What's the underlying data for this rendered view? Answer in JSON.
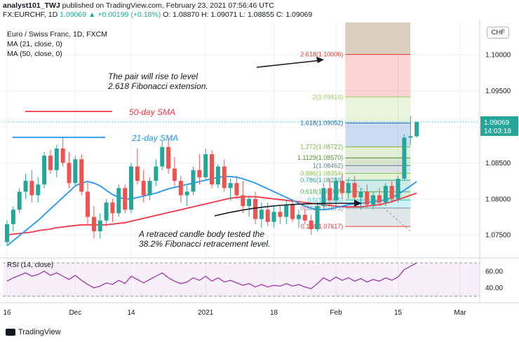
{
  "header": {
    "author": "analyst101_TWJ",
    "published_text": "published on TradingView.com, February 23, 2021 07:56:46 UTC",
    "symbol_line": "FX:EURCHF, 1D",
    "price": "1.09069",
    "change": "▲ +0.00199 (+0.18%)",
    "ohlc": "O: 1.08870 H: 1.09071 L: 1.08855 C: 1.09069"
  },
  "legend": {
    "title": "Euro / Swiss Franc, 1D, FXCM",
    "ma21": "MA (21, close, 0)",
    "ma50": "MA (50, close, 0)"
  },
  "currency_badge": "CHF",
  "annotations": {
    "rise": [
      "The pair will rise to level",
      "2.618 Fibonacci extension."
    ],
    "retrace": [
      "A retraced candle body tested the",
      "38.2% Fibonacci retracement level."
    ],
    "sma50_label": "50-day SMA",
    "sma21_label": "21-day SMA"
  },
  "footer": {
    "brand": "TradingView"
  },
  "colors": {
    "up": "#26a69a",
    "down": "#ef5350",
    "ma21": "#2196f3",
    "ma50": "#f23645",
    "rsi": "#9c27b0",
    "fib_top": "#d7cbb9"
  },
  "chart_data": {
    "type": "candlestick",
    "price_axis": {
      "min": 1.072,
      "max": 1.1045,
      "ticks": [
        "1.10000",
        "1.09500",
        "1.09000",
        "1.08500",
        "1.08000",
        "1.07500"
      ],
      "current_price": "1.09069",
      "countdown": "14:03:18"
    },
    "x_axis": {
      "ticks": [
        {
          "label": "16",
          "i": 0
        },
        {
          "label": "Dec",
          "i": 11
        },
        {
          "label": "14",
          "i": 20
        },
        {
          "label": "2021",
          "i": 32
        },
        {
          "label": "18",
          "i": 43
        },
        {
          "label": "Feb",
          "i": 53
        },
        {
          "label": "15",
          "i": 63
        },
        {
          "label": "Mar",
          "i": 73
        }
      ]
    },
    "candles": [
      [
        1.074,
        1.077,
        1.0735,
        1.0765
      ],
      [
        1.0765,
        1.079,
        1.0755,
        1.0785
      ],
      [
        1.0785,
        1.0815,
        1.078,
        1.081
      ],
      [
        1.081,
        1.0835,
        1.08,
        1.0825
      ],
      [
        1.0825,
        1.084,
        1.0795,
        1.0805
      ],
      [
        1.0805,
        1.083,
        1.0795,
        1.082
      ],
      [
        1.082,
        1.0865,
        1.0815,
        1.086
      ],
      [
        1.086,
        1.0868,
        1.0835,
        1.084
      ],
      [
        1.084,
        1.0875,
        1.083,
        1.087
      ],
      [
        1.087,
        1.0885,
        1.0845,
        1.085
      ],
      [
        1.085,
        1.0865,
        1.0815,
        1.0822
      ],
      [
        1.0822,
        1.086,
        1.0818,
        1.0855
      ],
      [
        1.0855,
        1.0862,
        1.0805,
        1.081
      ],
      [
        1.081,
        1.0822,
        1.0765,
        1.0775
      ],
      [
        1.0775,
        1.079,
        1.0745,
        1.0755
      ],
      [
        1.0755,
        1.078,
        1.0745,
        1.077
      ],
      [
        1.077,
        1.08,
        1.0762,
        1.0795
      ],
      [
        1.0795,
        1.08,
        1.0768,
        1.078
      ],
      [
        1.078,
        1.082,
        1.0775,
        1.0815
      ],
      [
        1.0815,
        1.082,
        1.078,
        1.0785
      ],
      [
        1.0785,
        1.085,
        1.078,
        1.0845
      ],
      [
        1.0845,
        1.087,
        1.082,
        1.0825
      ],
      [
        1.0825,
        1.084,
        1.0795,
        1.0805
      ],
      [
        1.0805,
        1.083,
        1.0798,
        1.0825
      ],
      [
        1.0825,
        1.0855,
        1.0818,
        1.0845
      ],
      [
        1.0845,
        1.088,
        1.084,
        1.0872
      ],
      [
        1.0872,
        1.0885,
        1.0835,
        1.0842
      ],
      [
        1.0842,
        1.0858,
        1.0818,
        1.0825
      ],
      [
        1.0825,
        1.0832,
        1.0795,
        1.0805
      ],
      [
        1.0805,
        1.0818,
        1.079,
        1.081
      ],
      [
        1.081,
        1.0845,
        1.0805,
        1.084
      ],
      [
        1.084,
        1.0862,
        1.082,
        1.083
      ],
      [
        1.083,
        1.087,
        1.0825,
        1.0862
      ],
      [
        1.0862,
        1.0868,
        1.0815,
        1.082
      ],
      [
        1.082,
        1.0848,
        1.0815,
        1.0845
      ],
      [
        1.0845,
        1.0855,
        1.081,
        1.0815
      ],
      [
        1.0815,
        1.0828,
        1.0798,
        1.0822
      ],
      [
        1.0822,
        1.0832,
        1.08,
        1.0805
      ],
      [
        1.0805,
        1.0825,
        1.078,
        1.079
      ],
      [
        1.079,
        1.0805,
        1.0775,
        1.08
      ],
      [
        1.08,
        1.081,
        1.0765,
        1.0772
      ],
      [
        1.0772,
        1.0795,
        1.076,
        1.0785
      ],
      [
        1.0785,
        1.0795,
        1.0762,
        1.0768
      ],
      [
        1.0768,
        1.079,
        1.076,
        1.0782
      ],
      [
        1.0782,
        1.079,
        1.0765,
        1.0775
      ],
      [
        1.0775,
        1.0798,
        1.0765,
        1.0792
      ],
      [
        1.0792,
        1.08,
        1.0768,
        1.0772
      ],
      [
        1.0772,
        1.0785,
        1.076,
        1.0778
      ],
      [
        1.0778,
        1.079,
        1.0765,
        1.077
      ],
      [
        1.077,
        1.0778,
        1.075,
        1.0758
      ],
      [
        1.0758,
        1.0795,
        1.0755,
        1.079
      ],
      [
        1.079,
        1.0822,
        1.0785,
        1.0815
      ],
      [
        1.0815,
        1.0828,
        1.079,
        1.0798
      ],
      [
        1.0798,
        1.083,
        1.079,
        1.0825
      ],
      [
        1.0825,
        1.0835,
        1.08,
        1.0808
      ],
      [
        1.0808,
        1.0828,
        1.08,
        1.0822
      ],
      [
        1.0822,
        1.0832,
        1.0795,
        1.0802
      ],
      [
        1.0802,
        1.0815,
        1.0785,
        1.081
      ],
      [
        1.081,
        1.082,
        1.0788,
        1.0792
      ],
      [
        1.0792,
        1.081,
        1.0785,
        1.0805
      ],
      [
        1.0805,
        1.0815,
        1.079,
        1.0795
      ],
      [
        1.0795,
        1.0822,
        1.079,
        1.0818
      ],
      [
        1.0818,
        1.0825,
        1.0795,
        1.08
      ],
      [
        1.08,
        1.0832,
        1.0795,
        1.0828
      ],
      [
        1.0828,
        1.089,
        1.0825,
        1.0885
      ],
      [
        1.0885,
        1.0915,
        1.0875,
        1.0887
      ],
      [
        1.0887,
        1.0907,
        1.0885,
        1.0907
      ]
    ],
    "ma21": [
      1.0735,
      1.0742,
      1.0749,
      1.0756,
      1.0763,
      1.077,
      1.0778,
      1.0786,
      1.0794,
      1.0802,
      1.081,
      1.0818,
      1.0822,
      1.0824,
      1.0822,
      1.0818,
      1.0812,
      1.0806,
      1.0802,
      1.08,
      1.08,
      1.0802,
      1.0804,
      1.0806,
      1.0808,
      1.0811,
      1.0814,
      1.0816,
      1.0818,
      1.082,
      1.0822,
      1.0824,
      1.0826,
      1.0828,
      1.083,
      1.0831,
      1.0831,
      1.083,
      1.0828,
      1.0825,
      1.0822,
      1.0818,
      1.0814,
      1.081,
      1.0806,
      1.0802,
      1.0798,
      1.0794,
      1.079,
      1.0787,
      1.0785,
      1.0785,
      1.0786,
      1.0788,
      1.079,
      1.0792,
      1.0793,
      1.0794,
      1.0795,
      1.0796,
      1.0797,
      1.0799,
      1.0802,
      1.0806,
      1.0812,
      1.0818,
      1.0824
    ],
    "ma50": [
      1.075,
      1.0751,
      1.0752,
      1.0753,
      1.0754,
      1.0756,
      1.0757,
      1.0758,
      1.076,
      1.0761,
      1.0762,
      1.0763,
      1.0764,
      1.0764,
      1.0764,
      1.0764,
      1.0764,
      1.0765,
      1.0766,
      1.0767,
      1.0769,
      1.0771,
      1.0773,
      1.0775,
      1.0777,
      1.0779,
      1.0781,
      1.0783,
      1.0785,
      1.0787,
      1.0789,
      1.0791,
      1.0793,
      1.0795,
      1.0797,
      1.0799,
      1.0801,
      1.0802,
      1.0803,
      1.0803,
      1.0803,
      1.0802,
      1.0801,
      1.08,
      1.0799,
      1.0798,
      1.0797,
      1.0796,
      1.0795,
      1.0794,
      1.0793,
      1.0792,
      1.0791,
      1.079,
      1.0789,
      1.0789,
      1.0789,
      1.0789,
      1.079,
      1.0791,
      1.0792,
      1.0794,
      1.0796,
      1.0799,
      1.0802,
      1.0805,
      1.0808
    ],
    "fibonacci": {
      "start_index": 54.5,
      "end_index": 65,
      "levels": [
        {
          "label": "2.618(1.10006)",
          "price": 1.10006,
          "color": "#e53935"
        },
        {
          "label": "2(1.09416)",
          "price": 1.09416,
          "color": "#9ccc65"
        },
        {
          "label": "1.618(1.09052)",
          "price": 1.09052,
          "color": "#1565c0"
        },
        {
          "label": "1.272(1.08722)",
          "price": 1.08722,
          "color": "#7cb342"
        },
        {
          "label": "1.1129(1.08570)",
          "price": 1.0857,
          "color": "#558b2f"
        },
        {
          "label": "1(1.08462)",
          "price": 1.08462,
          "color": "#607d8b"
        },
        {
          "label": "0.886(1.08354)",
          "price": 1.08354,
          "color": "#8bc34a"
        },
        {
          "label": "0.786(1.08259)",
          "price": 1.08259,
          "color": "#26a69a"
        },
        {
          "label": "0.618(1.08098)",
          "price": 1.08098,
          "color": "#4caf50"
        },
        {
          "label": "0.5(1.07985)",
          "price": 1.07985,
          "color": "#26c6da"
        },
        {
          "label": "0.382(1.07873)",
          "price": 1.07873,
          "color": "#78909c"
        },
        {
          "label": "0.114(1.07617)",
          "price": 1.07617,
          "color": "#e53935"
        }
      ],
      "top_price": 1.1045
    },
    "rsi": {
      "label": "RSI (14, close)",
      "ticks": [
        "60.00",
        "40.00"
      ],
      "min": 22,
      "max": 76,
      "band": [
        30,
        70
      ],
      "values": [
        48,
        52,
        55,
        58,
        54,
        56,
        60,
        55,
        58,
        54,
        50,
        55,
        49,
        44,
        40,
        42,
        46,
        44,
        49,
        45,
        54,
        50,
        46,
        50,
        54,
        58,
        52,
        48,
        45,
        47,
        52,
        49,
        54,
        48,
        52,
        47,
        49,
        46,
        43,
        45,
        41,
        44,
        41,
        43,
        42,
        45,
        42,
        44,
        41,
        39,
        45,
        52,
        48,
        53,
        49,
        52,
        48,
        51,
        47,
        50,
        48,
        52,
        49,
        53,
        62,
        66,
        70
      ]
    }
  }
}
